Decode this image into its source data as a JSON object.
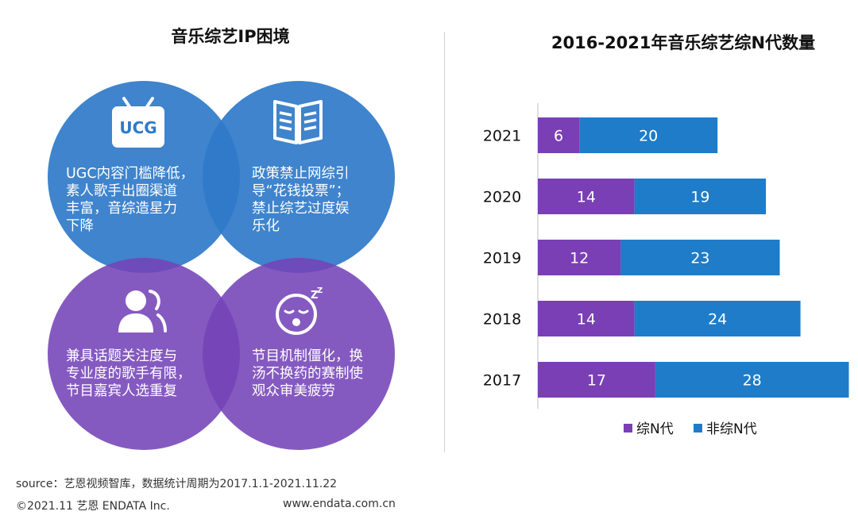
{
  "left": {
    "title": "音乐综艺IP困境",
    "circles": [
      {
        "icon": "tv-ucg-icon",
        "icon_label": "UCG",
        "lines": [
          "UGC内容门槛降低，",
          "素人歌手出圈渠道",
          "丰富，音综造星力",
          "下降"
        ]
      },
      {
        "icon": "document-icon",
        "lines": [
          "政策禁止网综引",
          "导“花钱投票”；",
          "禁止综艺过度娱",
          "乐化"
        ]
      },
      {
        "icon": "people-icon",
        "lines": [
          "兼具话题关注度与",
          "专业度的歌手有限，",
          "节目嘉宾人选重复"
        ]
      },
      {
        "icon": "sleepy-face-icon",
        "lines": [
          "节目机制僵化，换",
          "汤不换药的赛制使",
          "观众审美疲劳"
        ]
      }
    ]
  },
  "colors": {
    "blue": "#1f7cc8",
    "purple": "#7a3fb4"
  },
  "chart_data": {
    "type": "bar",
    "orientation": "horizontal",
    "stacked": true,
    "title": "2016-2021年音乐综艺综N代数量",
    "categories": [
      "2021",
      "2020",
      "2019",
      "2018",
      "2017"
    ],
    "series": [
      {
        "name": "综N代",
        "values": [
          6,
          14,
          12,
          14,
          17
        ]
      },
      {
        "name": "非综N代",
        "values": [
          20,
          19,
          23,
          24,
          28
        ]
      }
    ],
    "legend": [
      "综N代",
      "非综N代"
    ],
    "legend_position": "bottom"
  },
  "footer": {
    "source": "source：艺恩视频智库，数据统计周期为2017.1.1-2021.11.22",
    "copyright": "©2021.11 艺恩 ENDATA Inc.",
    "website": "www.endata.com.cn"
  }
}
